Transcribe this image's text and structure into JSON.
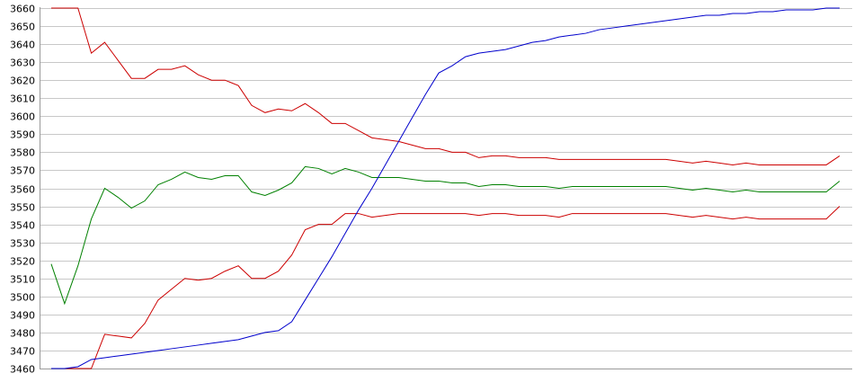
{
  "chart_data": {
    "type": "line",
    "title": "",
    "xlabel": "",
    "ylabel": "",
    "ylim": [
      3460,
      3660
    ],
    "yticks": [
      3460,
      3470,
      3480,
      3490,
      3500,
      3510,
      3520,
      3530,
      3540,
      3550,
      3560,
      3570,
      3580,
      3590,
      3600,
      3610,
      3620,
      3630,
      3640,
      3650,
      3660
    ],
    "grid": true,
    "legend": "none",
    "point_count": 60,
    "series": [
      {
        "color": "#cc0000",
        "values": [
          3660,
          3660,
          3660,
          3635,
          3641,
          3631,
          3621,
          3621,
          3626,
          3626,
          3628,
          3623,
          3620,
          3620,
          3617,
          3606,
          3602,
          3604,
          3603,
          3607,
          3602,
          3596,
          3596,
          3592,
          3588,
          3587,
          3586,
          3584,
          3582,
          3582,
          3580,
          3580,
          3577,
          3578,
          3578,
          3577,
          3577,
          3577,
          3576,
          3576,
          3576,
          3576,
          3576,
          3576,
          3576,
          3576,
          3576,
          3575,
          3574,
          3575,
          3574,
          3573,
          3574,
          3573,
          3573,
          3573,
          3573,
          3573,
          3573,
          3578
        ]
      },
      {
        "color": "#cc0000",
        "values": [
          3460,
          3460,
          3460,
          3460,
          3479,
          3478,
          3477,
          3485,
          3498,
          3504,
          3510,
          3509,
          3510,
          3514,
          3517,
          3510,
          3510,
          3514,
          3523,
          3537,
          3540,
          3540,
          3546,
          3546,
          3544,
          3545,
          3546,
          3546,
          3546,
          3546,
          3546,
          3546,
          3545,
          3546,
          3546,
          3545,
          3545,
          3545,
          3544,
          3546,
          3546,
          3546,
          3546,
          3546,
          3546,
          3546,
          3546,
          3545,
          3544,
          3545,
          3544,
          3543,
          3544,
          3543,
          3543,
          3543,
          3543,
          3543,
          3543,
          3550
        ]
      },
      {
        "color": "#008000",
        "values": [
          3518,
          3496,
          3517,
          3543,
          3560,
          3555,
          3549,
          3553,
          3562,
          3565,
          3569,
          3566,
          3565,
          3567,
          3567,
          3558,
          3556,
          3559,
          3563,
          3572,
          3571,
          3568,
          3571,
          3569,
          3566,
          3566,
          3566,
          3565,
          3564,
          3564,
          3563,
          3563,
          3561,
          3562,
          3562,
          3561,
          3561,
          3561,
          3560,
          3561,
          3561,
          3561,
          3561,
          3561,
          3561,
          3561,
          3561,
          3560,
          3559,
          3560,
          3559,
          3558,
          3559,
          3558,
          3558,
          3558,
          3558,
          3558,
          3558,
          3564
        ]
      },
      {
        "color": "#0000cc",
        "values": [
          3460,
          3460,
          3461,
          3465,
          3466,
          3467,
          3468,
          3469,
          3470,
          3471,
          3472,
          3473,
          3474,
          3475,
          3476,
          3478,
          3480,
          3481,
          3486,
          3498,
          3510,
          3522,
          3535,
          3548,
          3560,
          3573,
          3586,
          3599,
          3612,
          3624,
          3628,
          3633,
          3635,
          3636,
          3637,
          3639,
          3641,
          3642,
          3644,
          3645,
          3646,
          3648,
          3649,
          3650,
          3651,
          3652,
          3653,
          3654,
          3655,
          3656,
          3656,
          3657,
          3657,
          3658,
          3658,
          3659,
          3659,
          3659,
          3660,
          3660
        ]
      }
    ]
  }
}
